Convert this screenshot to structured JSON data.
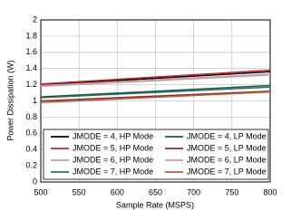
{
  "chart_data": {
    "type": "line",
    "x_label": "Sample Rate (MSPS)",
    "y_label": "Power Dissipation (W)",
    "x": [
      500,
      800
    ],
    "xlim": [
      500,
      800
    ],
    "xticks": [
      500,
      550,
      600,
      650,
      700,
      750,
      800
    ],
    "ylim": [
      0,
      2
    ],
    "yticks": [
      0,
      0.2,
      0.4,
      0.6,
      0.8,
      1,
      1.2,
      1.4,
      1.6,
      1.8,
      2
    ],
    "grid": true,
    "series": [
      {
        "name": "JMODE = 4, HP Mode",
        "color": "#000000",
        "values": [
          1.2,
          1.36
        ]
      },
      {
        "name": "JMODE = 5, HP Mode",
        "color": "#c0262b",
        "values": [
          1.21,
          1.38
        ]
      },
      {
        "name": "JMODE = 6, HP Mode",
        "color": "#a8a8a8",
        "values": [
          1.19,
          1.33
        ]
      },
      {
        "name": "JMODE = 7, HP Mode",
        "color": "#2f6f73",
        "values": [
          1.04,
          1.17
        ]
      },
      {
        "name": "JMODE = 4, LP Mode",
        "color": "#1e5a3c",
        "values": [
          1.05,
          1.19
        ]
      },
      {
        "name": "JMODE = 5, LP Mode",
        "color": "#8b2d2d",
        "values": [
          1.0,
          1.12
        ]
      },
      {
        "name": "JMODE = 6, LP Mode",
        "color": "#d39aa5",
        "values": [
          1.18,
          1.32
        ]
      },
      {
        "name": "JMODE = 7, LP Mode",
        "color": "#b0643a",
        "values": [
          0.98,
          1.11
        ]
      }
    ]
  }
}
